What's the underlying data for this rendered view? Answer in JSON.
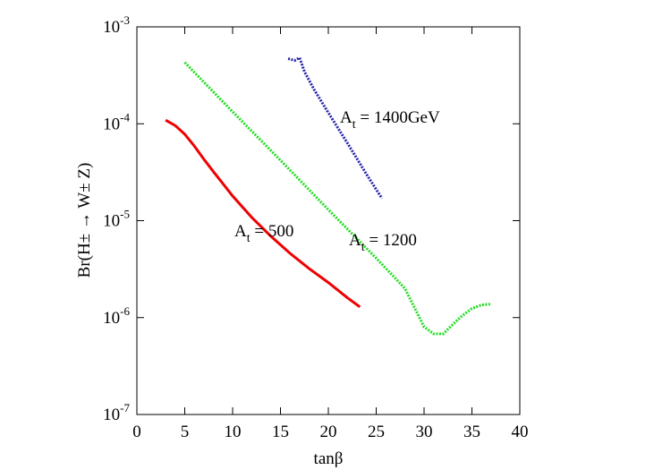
{
  "chart_data": {
    "type": "line",
    "xlabel": "tanβ",
    "ylabel": "Br(H± → W± Z)",
    "xlim": [
      0,
      40
    ],
    "xticks": [
      0,
      5,
      10,
      15,
      20,
      25,
      30,
      35,
      40
    ],
    "ylim": [
      1e-07,
      0.001
    ],
    "yscale": "log",
    "yticks": [
      {
        "value": 1e-07,
        "label": "10-7"
      },
      {
        "value": 1e-06,
        "label": "10-6"
      },
      {
        "value": 1e-05,
        "label": "10-5"
      },
      {
        "value": 0.0001,
        "label": "10-4"
      },
      {
        "value": 0.001,
        "label": "10-3"
      }
    ],
    "series": [
      {
        "name": "At = 500",
        "color": "#ee0000",
        "style": "solid",
        "x": [
          3,
          4,
          5,
          6,
          7,
          8,
          9,
          10,
          12,
          14,
          16,
          18,
          20,
          22,
          23.3
        ],
        "values": [
          0.000109,
          9.6e-05,
          7.8e-05,
          5.9e-05,
          4.3e-05,
          3.2e-05,
          2.4e-05,
          1.8e-05,
          1.08e-05,
          6.9e-06,
          4.6e-06,
          3.2e-06,
          2.3e-06,
          1.6e-06,
          1.29e-06
        ]
      },
      {
        "name": "At = 1200",
        "color": "#22dd22",
        "style": "dotted",
        "x": [
          5,
          10,
          15,
          20,
          25,
          28,
          30,
          31,
          32,
          33,
          34,
          35,
          36,
          37
        ],
        "values": [
          0.00043,
          0.000133,
          4.2e-05,
          1.3e-05,
          4.1e-06,
          2e-06,
          8e-07,
          6.8e-07,
          6.8e-07,
          8.5e-07,
          1.05e-06,
          1.24e-06,
          1.35e-06,
          1.38e-06
        ]
      },
      {
        "name": "At = 1400GeV",
        "color": "#2222aa",
        "style": "dotted",
        "x": [
          15.8,
          16.5,
          17,
          17.5,
          18.5,
          20,
          22,
          24,
          25.6
        ],
        "values": [
          0.00047,
          0.00045,
          0.00048,
          0.000345,
          0.000226,
          0.00013,
          6.3e-05,
          3e-05,
          1.7e-05
        ]
      }
    ]
  }
}
